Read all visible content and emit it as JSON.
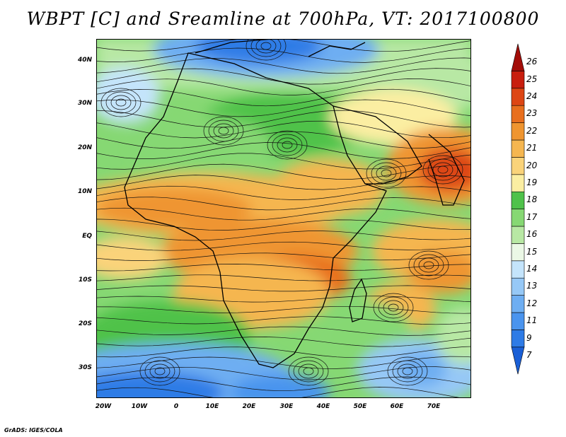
{
  "title": "WBPT [C] and Sreamline at 700hPa, VT: 2017100800",
  "footer": "GrADS: IGES/COLA",
  "lat_labels": [
    "40N",
    "30N",
    "20N",
    "10N",
    "EQ",
    "10S",
    "20S",
    "30S"
  ],
  "lon_labels": [
    "20W",
    "10W",
    "0",
    "10E",
    "20E",
    "30E",
    "40E",
    "50E",
    "60E",
    "70E"
  ],
  "colorbar": {
    "labels": [
      "7",
      "9",
      "11",
      "12",
      "13",
      "14",
      "15",
      "16",
      "17",
      "18",
      "19",
      "20",
      "21",
      "22",
      "23",
      "24",
      "25",
      "26"
    ],
    "colors": [
      "#1a5fd6",
      "#2e7be6",
      "#4a94ee",
      "#6eaef2",
      "#96c8f6",
      "#c4e4fb",
      "#ebf8e6",
      "#b8e8a4",
      "#86d873",
      "#4fc24a",
      "#fbeea2",
      "#fad37a",
      "#f5b650",
      "#ef9530",
      "#e86f1e",
      "#dd4614",
      "#c81e0e",
      "#a30d08"
    ]
  }
}
